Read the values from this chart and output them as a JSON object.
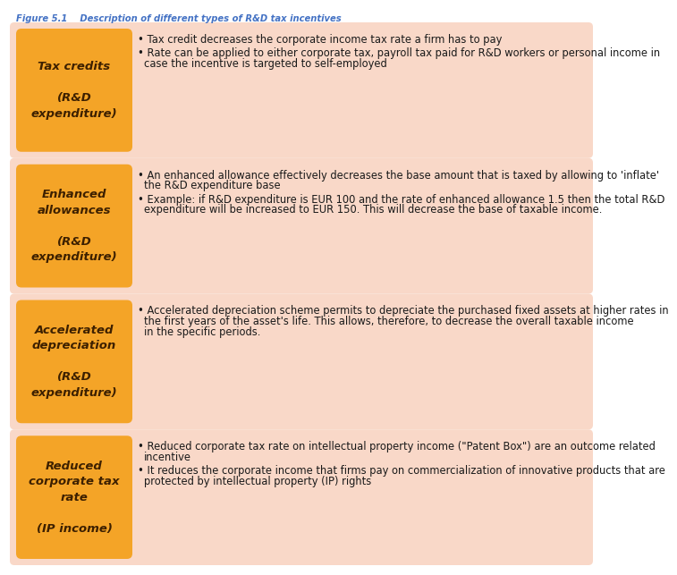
{
  "title": "Figure 5.1    Description of different types of R&D tax incentives",
  "title_color": "#4472C4",
  "background_color": "#FFFFFF",
  "orange_box_color": "#F4A427",
  "light_peach_bg": "#F9D8C8",
  "text_color_dark": "#3D2000",
  "bullet_text_color": "#1A1A1A",
  "rows": [
    {
      "label_lines": [
        "Tax credits",
        "\n(R&D",
        "expenditure)"
      ],
      "text_bullet1": "Tax credit decreases the corporate income tax rate a firm has to pay",
      "text_bullet2": "Rate can be applied to either corporate tax, payroll tax paid for R&D workers or personal income in case the incentive is targeted to self-employed"
    },
    {
      "label_lines": [
        "Enhanced",
        "allowances",
        "\n(R&D",
        "expenditure)"
      ],
      "text_bullet1": "An enhanced allowance effectively decreases the base amount that is taxed by allowing to 'inflate' the R&D expenditure base",
      "text_bullet2": "Example: if R&D expenditure is EUR 100 and the rate of enhanced allowance 1.5 then the total R&D expenditure will be increased to EUR 150. This will decrease the base of taxable income."
    },
    {
      "label_lines": [
        "Accelerated",
        "depreciation",
        "\n(R&D",
        "expenditure)"
      ],
      "text_bullet1": "Accelerated depreciation scheme permits to depreciate the purchased fixed assets at higher rates in the first years of the asset's life. This allows, therefore, to decrease the overall taxable income in the specific periods.",
      "text_bullet2": null
    },
    {
      "label_lines": [
        "Reduced",
        "corporate tax",
        "rate",
        "\n(IP income)"
      ],
      "text_bullet1": "Reduced corporate tax rate on intellectual property income (\"Patent Box\") are an outcome related incentive",
      "text_bullet2": "It reduces the corporate income that firms pay on commercialization of innovative products that are protected by intellectual property (IP) rights"
    }
  ]
}
